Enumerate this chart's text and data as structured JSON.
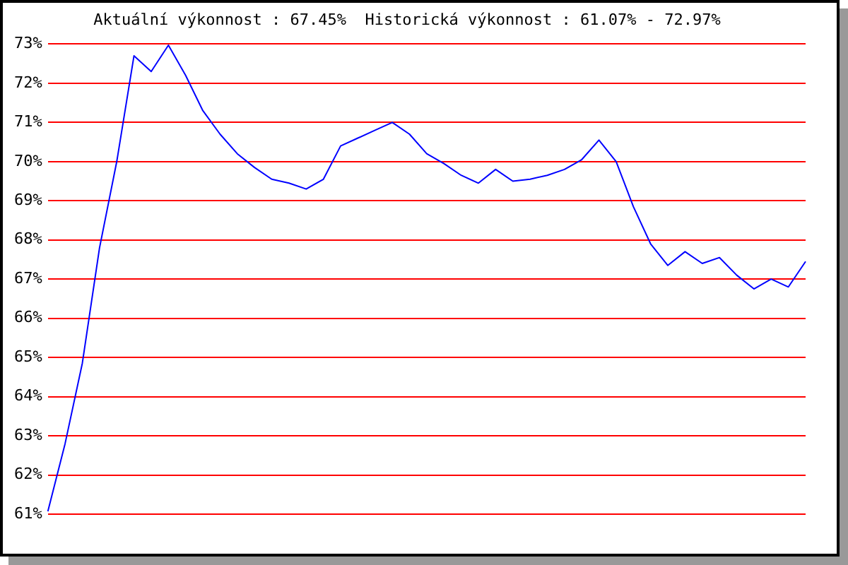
{
  "chart_data": {
    "type": "line",
    "title": "Aktuální výkonnost : 67.45%  Historická výkonnost : 61.07% - 72.97%",
    "categories": [
      null,
      null,
      null,
      null,
      null,
      null,
      null,
      null,
      null,
      null,
      null,
      null,
      null,
      null,
      null,
      null,
      null,
      null,
      null,
      null,
      null,
      null,
      null,
      null,
      null,
      null,
      null,
      null,
      null,
      null,
      null,
      null,
      null,
      null,
      null,
      null,
      null,
      null,
      null,
      null,
      null,
      null,
      null,
      null,
      null
    ],
    "series": [
      {
        "color": "#0000ff",
        "values": [
          61.07,
          62.8,
          64.85,
          67.8,
          70.0,
          72.7,
          72.3,
          72.97,
          72.2,
          71.3,
          70.7,
          70.2,
          69.85,
          69.55,
          69.45,
          69.3,
          69.55,
          70.4,
          70.6,
          70.8,
          71.0,
          70.7,
          70.2,
          69.95,
          69.65,
          69.45,
          69.8,
          69.5,
          69.55,
          69.65,
          69.8,
          70.05,
          70.55,
          70.0,
          68.85,
          67.9,
          67.35,
          67.7,
          67.4,
          67.55,
          67.1,
          66.75,
          67.0,
          66.8,
          67.45
        ]
      }
    ],
    "ylim": [
      61,
      73
    ],
    "yticks": [
      {
        "value": 61,
        "label": "61%"
      },
      {
        "value": 62,
        "label": "62%"
      },
      {
        "value": 63,
        "label": "63%"
      },
      {
        "value": 64,
        "label": "64%"
      },
      {
        "value": 65,
        "label": "65%"
      },
      {
        "value": 66,
        "label": "66%"
      },
      {
        "value": 67,
        "label": "67%"
      },
      {
        "value": 68,
        "label": "68%"
      },
      {
        "value": 69,
        "label": "69%"
      },
      {
        "value": 70,
        "label": "70%"
      },
      {
        "value": 71,
        "label": "71%"
      },
      {
        "value": 72,
        "label": "72%"
      },
      {
        "value": 73,
        "label": "73%"
      }
    ],
    "grid": "y",
    "tick_labels": "y",
    "legend": false,
    "marker": "none"
  }
}
